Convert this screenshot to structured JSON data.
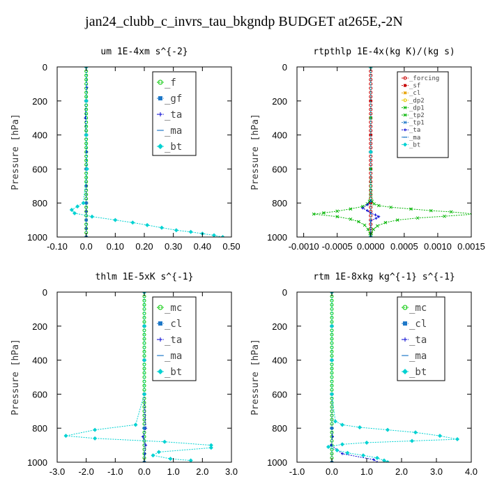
{
  "page": {
    "title": "jan24_clubb_c_invrs_tau_bkgndp  BUDGET at265E,-2N"
  },
  "chart_data": [
    {
      "type": "line",
      "title": "um  1E-4xm s^{-2}",
      "ylabel": "Pressure [hPa]",
      "xlim": [
        -0.1,
        0.5
      ],
      "ylim": [
        1000,
        0
      ],
      "xticks": [
        "-0.10",
        "0.0",
        "0.10",
        "0.20",
        "0.30",
        "0.40",
        "0.50"
      ],
      "xtick_values": [
        -0.1,
        0.0,
        0.1,
        0.2,
        0.3,
        0.4,
        0.5
      ],
      "yticks": [
        "0",
        "200",
        "400",
        "600",
        "800",
        "1000"
      ],
      "ytick_values": [
        0,
        200,
        400,
        600,
        800,
        1000
      ],
      "legend_style": "large",
      "series": [
        {
          "name": "_f",
          "color": "#00c800",
          "marker": "circle",
          "x": [
            0,
            0,
            0,
            0,
            0,
            0,
            0,
            0,
            0,
            0,
            0,
            0,
            0,
            0,
            0,
            0,
            0,
            0,
            0,
            0,
            0,
            0,
            0,
            0,
            0,
            0,
            0,
            0,
            0,
            0,
            0,
            0,
            0,
            0,
            0,
            0,
            0,
            0,
            0,
            0,
            0
          ],
          "y": [
            0,
            25,
            50,
            75,
            100,
            125,
            150,
            175,
            200,
            225,
            250,
            275,
            300,
            325,
            350,
            375,
            400,
            425,
            450,
            475,
            500,
            525,
            550,
            575,
            600,
            625,
            650,
            675,
            700,
            725,
            750,
            775,
            800,
            825,
            850,
            875,
            900,
            925,
            950,
            975,
            1000
          ]
        },
        {
          "name": "_gf",
          "color": "#1e78c8",
          "marker": "square",
          "x": [
            0,
            0,
            0,
            0,
            0,
            0,
            0
          ],
          "y": [
            0,
            200,
            400,
            600,
            800,
            900,
            1000
          ]
        },
        {
          "name": "_ta",
          "color": "#0000d2",
          "marker": "plus",
          "x": [
            0,
            0.002,
            -0.003,
            0.002,
            0,
            0,
            0,
            0
          ],
          "y": [
            0,
            120,
            300,
            500,
            700,
            850,
            950,
            1000
          ]
        },
        {
          "name": "_ma",
          "color": "#1e78c8",
          "marker": "dash",
          "x": [
            0,
            0,
            0,
            0,
            0,
            0
          ],
          "y": [
            0,
            200,
            400,
            600,
            800,
            1000
          ]
        },
        {
          "name": "_bt",
          "color": "#00d2d2",
          "marker": "diamond",
          "x": [
            0,
            0,
            0,
            0.003,
            -0.01,
            -0.03,
            -0.05,
            -0.04,
            0.02,
            0.1,
            0.16,
            0.21,
            0.26,
            0.31,
            0.36,
            0.4,
            0.44,
            0.47
          ],
          "y": [
            0,
            200,
            400,
            600,
            800,
            820,
            840,
            860,
            880,
            900,
            915,
            930,
            945,
            960,
            970,
            980,
            990,
            1000
          ]
        }
      ]
    },
    {
      "type": "line",
      "title": "rtpthlp  1E-4x(kg K)/(kg s)",
      "ylabel": "Pressure [hPa]",
      "xlim": [
        -0.0011,
        0.0015
      ],
      "ylim": [
        1000,
        0
      ],
      "xticks": [
        "-0.0010",
        "-0.0005",
        "0.0000",
        "0.0005",
        "0.0010",
        "0.0015"
      ],
      "xtick_values": [
        -0.001,
        -0.0005,
        0.0,
        0.0005,
        0.001,
        0.0015
      ],
      "yticks": [
        "0",
        "200",
        "400",
        "600",
        "800",
        "1000"
      ],
      "ytick_values": [
        0,
        200,
        400,
        600,
        800,
        1000
      ],
      "legend_style": "small",
      "series": [
        {
          "name": "_forcing",
          "color": "#c80000",
          "marker": "circle",
          "x": [
            0,
            0,
            0,
            0,
            0,
            0,
            0,
            0,
            0,
            0,
            0,
            0,
            0,
            0,
            0,
            0,
            0,
            0,
            0,
            0,
            0,
            0,
            0,
            0,
            0,
            0,
            0,
            0,
            0,
            0,
            0,
            0,
            0,
            0,
            0,
            0,
            0,
            0,
            0,
            0,
            0
          ],
          "y": [
            0,
            25,
            50,
            75,
            100,
            125,
            150,
            175,
            200,
            225,
            250,
            275,
            300,
            325,
            350,
            375,
            400,
            425,
            450,
            475,
            500,
            525,
            550,
            575,
            600,
            625,
            650,
            675,
            700,
            725,
            750,
            775,
            800,
            825,
            850,
            875,
            900,
            925,
            950,
            975,
            1000
          ]
        },
        {
          "name": "_sf",
          "color": "#c80000",
          "marker": "square",
          "x": [
            0,
            0,
            0,
            0,
            0,
            0
          ],
          "y": [
            0,
            200,
            400,
            600,
            800,
            1000
          ]
        },
        {
          "name": "_cl",
          "color": "#e6a000",
          "marker": "star",
          "x": [
            0,
            0,
            0
          ],
          "y": [
            0,
            500,
            1000
          ]
        },
        {
          "name": "_dp2",
          "color": "#e6c800",
          "marker": "circle",
          "x": [
            0,
            0,
            0
          ],
          "y": [
            0,
            500,
            1000
          ]
        },
        {
          "name": "_dp1",
          "color": "#00b400",
          "marker": "cross",
          "x": [
            0,
            0,
            0,
            2e-05,
            5e-05,
            0.00012,
            0.0003,
            0.0006,
            0.0009,
            0.0012,
            0.00155,
            0.0011,
            0.0007,
            0.0004,
            0.00022,
            0.0001,
            4e-05,
            1e-05,
            0
          ],
          "y": [
            0,
            300,
            600,
            790,
            805,
            815,
            825,
            835,
            845,
            852,
            865,
            878,
            888,
            900,
            915,
            935,
            955,
            980,
            1000
          ]
        },
        {
          "name": "_tp2",
          "color": "#00b400",
          "marker": "cross",
          "x": [
            0,
            0,
            0,
            -2e-05,
            -5e-05,
            -0.00012,
            -0.0003,
            -0.0005,
            -0.0007,
            -0.00085,
            -0.0005,
            -0.0003,
            -0.00018,
            -9e-05,
            -4e-05,
            -1e-05,
            0
          ],
          "y": [
            0,
            300,
            600,
            790,
            805,
            820,
            835,
            848,
            858,
            865,
            880,
            895,
            910,
            930,
            955,
            980,
            1000
          ]
        },
        {
          "name": "_tp1",
          "color": "#1e78c8",
          "marker": "cross",
          "x": [
            0,
            0,
            0
          ],
          "y": [
            0,
            500,
            1000
          ]
        },
        {
          "name": "_ta",
          "color": "#0000d2",
          "marker": "plus",
          "x": [
            0,
            0,
            -5e-05,
            -0.00012,
            -5e-05,
            0,
            7e-05,
            0.00012,
            8e-05,
            0,
            0
          ],
          "y": [
            0,
            790,
            810,
            830,
            845,
            860,
            870,
            880,
            890,
            905,
            1000
          ]
        },
        {
          "name": "_ma",
          "color": "#1e78c8",
          "marker": "dash",
          "x": [
            0,
            0,
            0
          ],
          "y": [
            0,
            500,
            1000
          ]
        },
        {
          "name": "_bt",
          "color": "#00d2d2",
          "marker": "diamond",
          "x": [
            0,
            0,
            0
          ],
          "y": [
            0,
            500,
            1000
          ]
        }
      ]
    },
    {
      "type": "line",
      "title": "thlm  1E-5xK s^{-1}",
      "ylabel": "Pressure [hPa]",
      "xlim": [
        -3.0,
        3.0
      ],
      "ylim": [
        1000,
        0
      ],
      "xticks": [
        "-3.0",
        "-2.0",
        "-1.0",
        "0.0",
        "1.0",
        "2.0",
        "3.0"
      ],
      "xtick_values": [
        -3.0,
        -2.0,
        -1.0,
        0.0,
        1.0,
        2.0,
        3.0
      ],
      "yticks": [
        "0",
        "200",
        "400",
        "600",
        "800",
        "1000"
      ],
      "ytick_values": [
        0,
        200,
        400,
        600,
        800,
        1000
      ],
      "legend_style": "large",
      "series": [
        {
          "name": "_mc",
          "color": "#00c800",
          "marker": "circle",
          "x": [
            0,
            0,
            0,
            0,
            0,
            0,
            0,
            0,
            0,
            0,
            0,
            0,
            0,
            0,
            0,
            0,
            0,
            0,
            0,
            0,
            0,
            0,
            0,
            0,
            0,
            0,
            0,
            0,
            0,
            0,
            0,
            0,
            0,
            0,
            0,
            0,
            0,
            0,
            0,
            0,
            0
          ],
          "y": [
            0,
            25,
            50,
            75,
            100,
            125,
            150,
            175,
            200,
            225,
            250,
            275,
            300,
            325,
            350,
            375,
            400,
            425,
            450,
            475,
            500,
            525,
            550,
            575,
            600,
            625,
            650,
            675,
            700,
            725,
            750,
            775,
            800,
            825,
            850,
            875,
            900,
            925,
            950,
            975,
            1000
          ]
        },
        {
          "name": "_cl",
          "color": "#1e78c8",
          "marker": "square",
          "x": [
            0,
            0,
            0,
            0,
            0,
            0
          ],
          "y": [
            0,
            200,
            400,
            600,
            800,
            1000
          ]
        },
        {
          "name": "_ta",
          "color": "#0000d2",
          "marker": "plus",
          "x": [
            0,
            0,
            0,
            0,
            0.05,
            -0.05,
            0.05,
            0.02,
            0
          ],
          "y": [
            0,
            200,
            400,
            600,
            800,
            850,
            900,
            950,
            1000
          ]
        },
        {
          "name": "_ma",
          "color": "#1e78c8",
          "marker": "dash",
          "x": [
            0,
            0,
            0,
            0,
            0,
            0
          ],
          "y": [
            0,
            200,
            400,
            600,
            800,
            1000
          ]
        },
        {
          "name": "_bt",
          "color": "#00d2d2",
          "marker": "diamond",
          "x": [
            0,
            0,
            0,
            0,
            -0.3,
            -1.7,
            -2.7,
            -1.7,
            0.7,
            2.3,
            2.3,
            0.5,
            0.3,
            0.9,
            1.6
          ],
          "y": [
            0,
            200,
            400,
            600,
            780,
            810,
            845,
            860,
            880,
            900,
            915,
            940,
            960,
            980,
            990
          ]
        }
      ]
    },
    {
      "type": "line",
      "title": "rtm  1E-8xkg kg^{-1} s^{-1}",
      "ylabel": "Pressure [hPa]",
      "xlim": [
        -1.0,
        4.0
      ],
      "ylim": [
        1000,
        0
      ],
      "xticks": [
        "-1.0",
        "0.0",
        "1.0",
        "2.0",
        "3.0",
        "4.0"
      ],
      "xtick_values": [
        -1.0,
        0.0,
        1.0,
        2.0,
        3.0,
        4.0
      ],
      "yticks": [
        "0",
        "200",
        "400",
        "600",
        "800",
        "1000"
      ],
      "ytick_values": [
        0,
        200,
        400,
        600,
        800,
        1000
      ],
      "legend_style": "large",
      "series": [
        {
          "name": "_mc",
          "color": "#00c800",
          "marker": "circle",
          "x": [
            0,
            0,
            0,
            0,
            0,
            0,
            0,
            0,
            0,
            0,
            0,
            0,
            0,
            0,
            0,
            0,
            0,
            0,
            0,
            0,
            0,
            0,
            0,
            0,
            0,
            0,
            0,
            0,
            0,
            0,
            0,
            0,
            0,
            0,
            0,
            0,
            0,
            0,
            0,
            0,
            0
          ],
          "y": [
            0,
            25,
            50,
            75,
            100,
            125,
            150,
            175,
            200,
            225,
            250,
            275,
            300,
            325,
            350,
            375,
            400,
            425,
            450,
            475,
            500,
            525,
            550,
            575,
            600,
            625,
            650,
            675,
            700,
            725,
            750,
            775,
            800,
            825,
            850,
            875,
            900,
            925,
            950,
            975,
            1000
          ]
        },
        {
          "name": "_cl",
          "color": "#1e78c8",
          "marker": "square",
          "x": [
            0,
            0,
            0,
            0,
            0,
            0
          ],
          "y": [
            0,
            200,
            400,
            600,
            800,
            1000
          ]
        },
        {
          "name": "_ta",
          "color": "#0000d2",
          "marker": "plus",
          "x": [
            0,
            0,
            0,
            0,
            0,
            0.02,
            -0.02,
            0.3,
            1.2,
            1.3
          ],
          "y": [
            0,
            200,
            400,
            600,
            800,
            850,
            900,
            950,
            985,
            1000
          ]
        },
        {
          "name": "_ma",
          "color": "#1e78c8",
          "marker": "dash",
          "x": [
            0,
            0,
            0,
            0,
            0,
            0
          ],
          "y": [
            0,
            200,
            400,
            600,
            800,
            1000
          ]
        },
        {
          "name": "_bt",
          "color": "#00d2d2",
          "marker": "diamond",
          "x": [
            0,
            0,
            0,
            0,
            0.1,
            0.3,
            0.8,
            1.6,
            2.4,
            3.1,
            3.6,
            2.3,
            1.0,
            0.3,
            -0.1,
            0.15,
            0.45,
            0.9,
            1.3,
            1.5,
            1.6
          ],
          "y": [
            0,
            200,
            400,
            600,
            760,
            780,
            795,
            810,
            825,
            845,
            865,
            875,
            885,
            895,
            910,
            930,
            945,
            960,
            975,
            990,
            1000
          ]
        }
      ]
    }
  ]
}
